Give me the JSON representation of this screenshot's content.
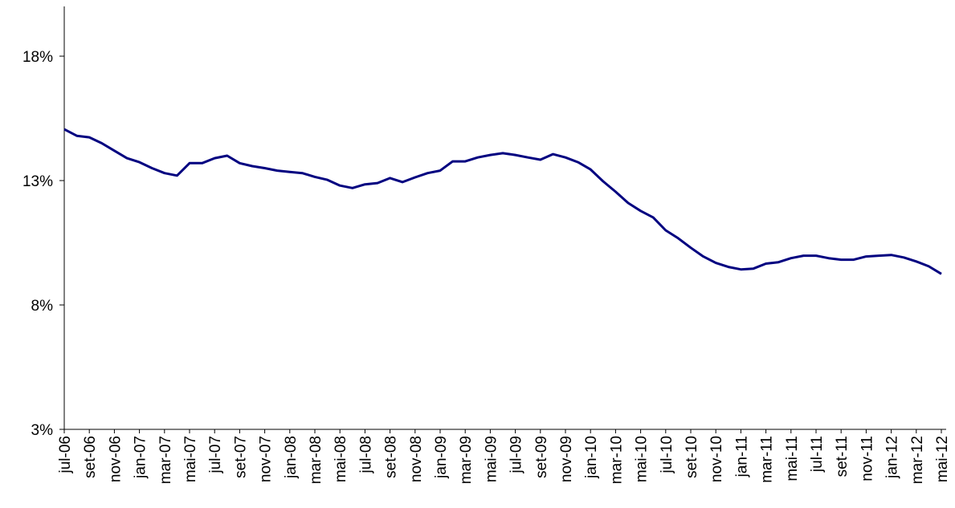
{
  "chart_data": {
    "type": "line",
    "categories": [
      "jul-06",
      null,
      "set-06",
      null,
      "nov-06",
      null,
      "jan-07",
      null,
      "mar-07",
      null,
      "mai-07",
      null,
      "jul-07",
      null,
      "set-07",
      null,
      "nov-07",
      null,
      "jan-08",
      null,
      "mar-08",
      null,
      "mai-08",
      null,
      "jul-08",
      null,
      "set-08",
      null,
      "nov-08",
      null,
      "jan-09",
      null,
      "mar-09",
      null,
      "mai-09",
      null,
      "jul-09",
      null,
      "set-09",
      null,
      "nov-09",
      null,
      "jan-10",
      null,
      "mar-10",
      null,
      "mai-10",
      null,
      "jul-10",
      null,
      "set-10",
      null,
      "nov-10",
      null,
      "jan-11",
      null,
      "mar-11",
      null,
      "mai-11",
      null,
      "jul-11",
      null,
      "set-11",
      null,
      "nov-11",
      null,
      "jan-12",
      null,
      "mar-12",
      null,
      "mai-12"
    ],
    "values": [
      15.06,
      14.8,
      14.74,
      14.5,
      14.2,
      13.9,
      13.74,
      13.5,
      13.3,
      13.2,
      13.7,
      13.7,
      13.9,
      14.0,
      13.7,
      13.58,
      13.5,
      13.4,
      13.35,
      13.3,
      13.15,
      13.03,
      12.8,
      12.7,
      12.85,
      12.9,
      13.1,
      12.94,
      13.13,
      13.3,
      13.4,
      13.77,
      13.77,
      13.93,
      14.03,
      14.1,
      14.03,
      13.93,
      13.84,
      14.06,
      13.93,
      13.74,
      13.45,
      12.97,
      12.55,
      12.1,
      11.78,
      11.52,
      11.0,
      10.68,
      10.3,
      9.95,
      9.69,
      9.53,
      9.43,
      9.46,
      9.66,
      9.72,
      9.88,
      9.98,
      9.98,
      9.88,
      9.82,
      9.82,
      9.95,
      9.98,
      10.01,
      9.91,
      9.75,
      9.55,
      9.25
    ],
    "color": "#000080",
    "ylim": [
      3,
      20
    ],
    "yticks": [
      {
        "value": 3,
        "label": "3%"
      },
      {
        "value": 8,
        "label": "8%"
      },
      {
        "value": 13,
        "label": "13%"
      },
      {
        "value": 18,
        "label": "18%"
      }
    ]
  }
}
